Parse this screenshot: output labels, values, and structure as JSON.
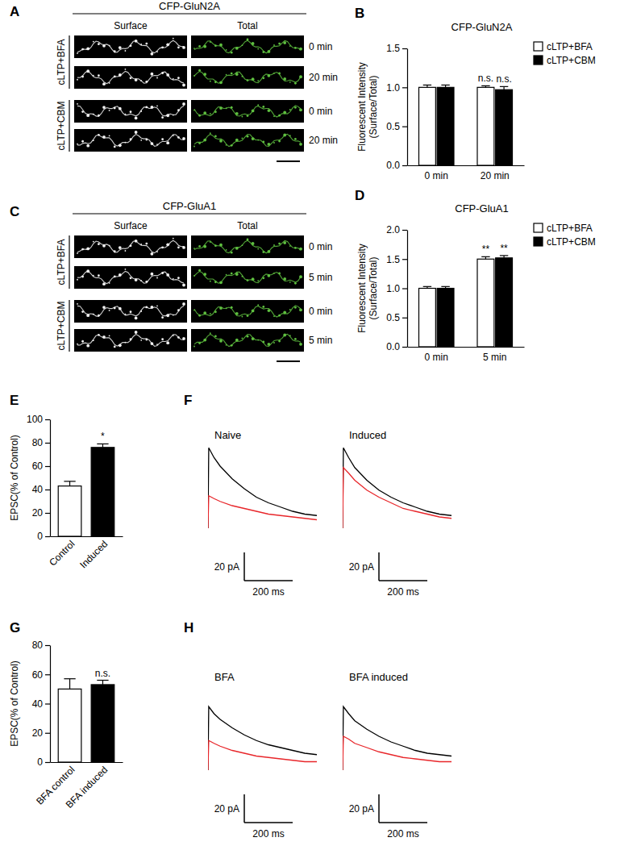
{
  "image_panels": [
    {
      "panel_label": "A",
      "title": "CFP-GluN2A",
      "columns": [
        "Surface",
        "Total"
      ],
      "groups": [
        {
          "label": "cLTP+BFA",
          "rows": [
            "0 min",
            "20 min"
          ]
        },
        {
          "label": "cLTP+CBM",
          "rows": [
            "0 min",
            "20 min"
          ]
        }
      ]
    },
    {
      "panel_label": "C",
      "title": "CFP-GluA1",
      "columns": [
        "Surface",
        "Total"
      ],
      "groups": [
        {
          "label": "cLTP+BFA",
          "rows": [
            "0 min",
            "5 min"
          ]
        },
        {
          "label": "cLTP+CBM",
          "rows": [
            "0 min",
            "5 min"
          ]
        }
      ]
    }
  ],
  "chart_data": [
    {
      "type": "bar",
      "panel_label": "B",
      "title": "CFP-GluN2A",
      "y_label": [
        "Fluorescent Intensity",
        "(Surface/Total)"
      ],
      "categories": [
        "0 min",
        "20 min"
      ],
      "series": [
        {
          "name": "cLTP+BFA",
          "color": "#ffffff",
          "values": [
            1.0,
            1.0
          ],
          "errors": [
            0.03,
            0.02
          ],
          "significance": [
            null,
            "n.s."
          ]
        },
        {
          "name": "cLTP+CBM",
          "color": "#000000",
          "values": [
            1.0,
            0.97
          ],
          "errors": [
            0.03,
            0.04
          ],
          "significance": [
            null,
            "n.s."
          ]
        }
      ],
      "legend": "right",
      "ylim": [
        0,
        1.5
      ],
      "yticks": [
        {
          "value": 0,
          "label": "0.0"
        },
        0.5,
        {
          "value": 1,
          "label": "1.0"
        },
        1.5
      ]
    },
    {
      "type": "bar",
      "panel_label": "D",
      "title": "CFP-GluA1",
      "y_label": [
        "Fluorescent Intensity",
        "(Surface/Total)"
      ],
      "categories": [
        "0 min",
        "5 min"
      ],
      "series": [
        {
          "name": "cLTP+BFA",
          "color": "#ffffff",
          "values": [
            1.0,
            1.5
          ],
          "errors": [
            0.03,
            0.04
          ],
          "significance": [
            null,
            "**"
          ]
        },
        {
          "name": "cLTP+CBM",
          "color": "#000000",
          "values": [
            1.0,
            1.52
          ],
          "errors": [
            0.03,
            0.04
          ],
          "significance": [
            null,
            "**"
          ]
        }
      ],
      "legend": "right",
      "ylim": [
        0,
        2.0
      ],
      "yticks": [
        {
          "value": 0,
          "label": "0.0"
        },
        0.5,
        {
          "value": 1,
          "label": "1.0"
        },
        1.5,
        {
          "value": 2,
          "label": "2.0"
        }
      ]
    },
    {
      "type": "bar",
      "panel_label": "E",
      "y_label": "EPSC(% of Control)",
      "categories": [
        "Control",
        "Induced"
      ],
      "values": [
        43,
        76
      ],
      "errors": [
        4,
        3
      ],
      "significance": [
        null,
        "*"
      ],
      "colors": [
        "#ffffff",
        "#000000"
      ],
      "ylim": [
        0,
        100
      ],
      "yticks": [
        0,
        20,
        40,
        60,
        80,
        100
      ]
    },
    {
      "type": "line",
      "panel_label": "F",
      "title": "Naive",
      "tick_labels": false,
      "x": [
        0,
        3,
        25,
        50,
        100,
        150,
        200,
        250,
        300,
        350,
        400,
        450
      ],
      "series": [
        {
          "color": "#000000",
          "values": [
            0,
            57,
            50,
            44,
            35,
            28,
            22,
            18,
            15,
            12,
            10,
            9
          ]
        },
        {
          "color": "#e8262a",
          "values": [
            0,
            23,
            21,
            19,
            16,
            14,
            12,
            10,
            9,
            8,
            7,
            6
          ]
        }
      ],
      "xlim": [
        0,
        450
      ],
      "ylim": [
        0,
        60
      ],
      "scale_bar": {
        "x": 200,
        "x_label": "200 ms",
        "y": 20,
        "y_label": "20 pA"
      }
    },
    {
      "type": "line",
      "title": "Induced",
      "tick_labels": false,
      "x": [
        0,
        3,
        25,
        50,
        100,
        150,
        200,
        250,
        300,
        350,
        400,
        450
      ],
      "series": [
        {
          "color": "#000000",
          "values": [
            0,
            57,
            50,
            43,
            34,
            27,
            22,
            18,
            15,
            12,
            10,
            9
          ]
        },
        {
          "color": "#e8262a",
          "values": [
            0,
            43,
            39,
            34,
            27,
            22,
            18,
            14,
            12,
            10,
            8,
            7
          ]
        }
      ],
      "xlim": [
        0,
        450
      ],
      "ylim": [
        0,
        60
      ],
      "scale_bar": {
        "x": 200,
        "x_label": "200 ms",
        "y": 20,
        "y_label": "20 pA"
      }
    },
    {
      "type": "bar",
      "panel_label": "G",
      "y_label": "EPSC(% of Control)",
      "categories": [
        "BFA control",
        "BFA induced"
      ],
      "values": [
        50,
        53
      ],
      "errors": [
        7,
        3
      ],
      "significance": [
        null,
        "n.s."
      ],
      "colors": [
        "#ffffff",
        "#000000"
      ],
      "ylim": [
        0,
        80
      ],
      "yticks": [
        0,
        20,
        40,
        60,
        80
      ]
    },
    {
      "type": "line",
      "panel_label": "H",
      "title": "BFA",
      "tick_labels": false,
      "x": [
        0,
        3,
        25,
        50,
        100,
        150,
        200,
        250,
        300,
        350,
        400,
        450
      ],
      "series": [
        {
          "color": "#000000",
          "values": [
            0,
            45,
            40,
            36,
            30,
            25,
            21,
            18,
            16,
            14,
            12,
            11
          ]
        },
        {
          "color": "#e8262a",
          "values": [
            0,
            21,
            19,
            17,
            14,
            12,
            10,
            9,
            8,
            7,
            6,
            6
          ]
        }
      ],
      "xlim": [
        0,
        450
      ],
      "ylim": [
        0,
        60
      ],
      "scale_bar": {
        "x": 200,
        "x_label": "200 ms",
        "y": 20,
        "y_label": "20 pA"
      }
    },
    {
      "type": "line",
      "title": "BFA induced",
      "tick_labels": false,
      "x": [
        0,
        3,
        25,
        50,
        100,
        150,
        200,
        250,
        300,
        350,
        400,
        450
      ],
      "series": [
        {
          "color": "#000000",
          "values": [
            0,
            45,
            40,
            35,
            29,
            24,
            20,
            17,
            14,
            12,
            11,
            10
          ]
        },
        {
          "color": "#e8262a",
          "values": [
            0,
            24,
            22,
            19,
            16,
            13,
            11,
            9,
            8,
            7,
            6,
            6
          ]
        }
      ],
      "xlim": [
        0,
        450
      ],
      "ylim": [
        0,
        60
      ],
      "scale_bar": {
        "x": 200,
        "x_label": "200 ms",
        "y": 20,
        "y_label": "20 pA"
      }
    }
  ]
}
